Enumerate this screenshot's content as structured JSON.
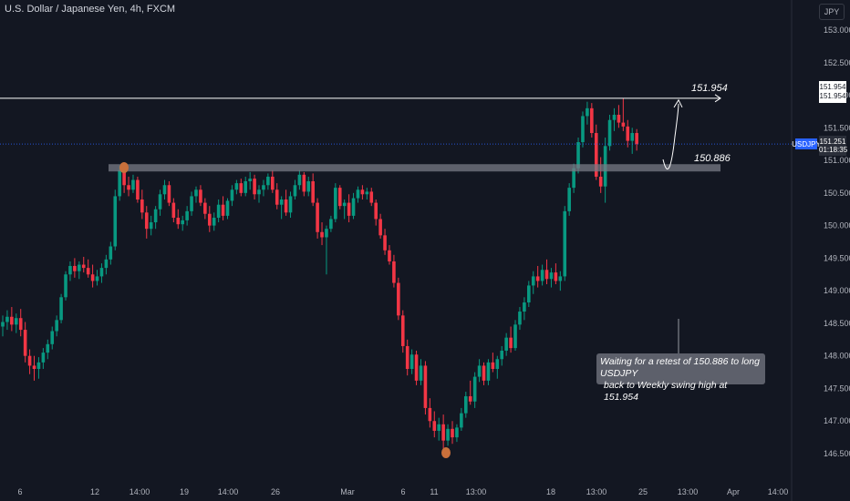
{
  "header": {
    "title": "U.S. Dollar / Japanese Yen, 4h, FXCM",
    "currency": "JPY"
  },
  "levels": {
    "target_label": "151.954",
    "retest_label": "150.886",
    "axis_tag_top": "151.954",
    "axis_tag_bottom": "151.954",
    "symbol_tag": "USDJPY",
    "last_price": "151.251",
    "countdown": "01:18:35"
  },
  "note": {
    "line1": "Waiting for a retest of 150.886 to long USDJPY",
    "line2": "back to Weekly swing high at 151.954"
  },
  "colors": {
    "up": "#089981",
    "down": "#f23645",
    "zone": "#787b86",
    "marker": "#c9703b",
    "background": "#131722"
  },
  "chart_data": {
    "type": "candlestick",
    "y_ticks": [
      "153.000",
      "152.500",
      "152.000",
      "151.500",
      "151.000",
      "150.500",
      "150.000",
      "149.500",
      "149.000",
      "148.500",
      "148.000",
      "147.500",
      "147.000",
      "146.500"
    ],
    "x_ticks": [
      "6",
      "12",
      "14:00",
      "19",
      "14:00",
      "26",
      "Mar",
      "6",
      "11",
      "13:00",
      "18",
      "13:00",
      "25",
      "13:00",
      "Apr",
      "14:00"
    ],
    "ylim": [
      146.3,
      153.2
    ],
    "horizontal_levels": [
      151.954,
      150.886
    ],
    "candles": [
      {
        "o": 148.45,
        "h": 148.62,
        "l": 148.3,
        "c": 148.52
      },
      {
        "o": 148.52,
        "h": 148.7,
        "l": 148.4,
        "c": 148.6
      },
      {
        "o": 148.6,
        "h": 148.75,
        "l": 148.38,
        "c": 148.48
      },
      {
        "o": 148.48,
        "h": 148.65,
        "l": 148.35,
        "c": 148.58
      },
      {
        "o": 148.58,
        "h": 148.72,
        "l": 148.3,
        "c": 148.4
      },
      {
        "o": 148.4,
        "h": 148.52,
        "l": 147.9,
        "c": 148.0
      },
      {
        "o": 148.0,
        "h": 148.1,
        "l": 147.72,
        "c": 147.85
      },
      {
        "o": 147.85,
        "h": 148.0,
        "l": 147.62,
        "c": 147.8
      },
      {
        "o": 147.8,
        "h": 147.98,
        "l": 147.65,
        "c": 147.9
      },
      {
        "o": 147.9,
        "h": 148.12,
        "l": 147.8,
        "c": 148.05
      },
      {
        "o": 148.05,
        "h": 148.25,
        "l": 147.95,
        "c": 148.18
      },
      {
        "o": 148.18,
        "h": 148.45,
        "l": 148.1,
        "c": 148.38
      },
      {
        "o": 148.38,
        "h": 148.62,
        "l": 148.3,
        "c": 148.55
      },
      {
        "o": 148.55,
        "h": 148.95,
        "l": 148.5,
        "c": 148.9
      },
      {
        "o": 148.9,
        "h": 149.3,
        "l": 148.85,
        "c": 149.25
      },
      {
        "o": 149.25,
        "h": 149.45,
        "l": 149.15,
        "c": 149.38
      },
      {
        "o": 149.38,
        "h": 149.5,
        "l": 149.2,
        "c": 149.3
      },
      {
        "o": 149.3,
        "h": 149.45,
        "l": 149.18,
        "c": 149.4
      },
      {
        "o": 149.4,
        "h": 149.52,
        "l": 149.28,
        "c": 149.35
      },
      {
        "o": 149.35,
        "h": 149.48,
        "l": 149.2,
        "c": 149.25
      },
      {
        "o": 149.25,
        "h": 149.4,
        "l": 149.05,
        "c": 149.15
      },
      {
        "o": 149.15,
        "h": 149.32,
        "l": 149.08,
        "c": 149.22
      },
      {
        "o": 149.22,
        "h": 149.42,
        "l": 149.12,
        "c": 149.35
      },
      {
        "o": 149.35,
        "h": 149.55,
        "l": 149.25,
        "c": 149.48
      },
      {
        "o": 149.48,
        "h": 149.75,
        "l": 149.4,
        "c": 149.68
      },
      {
        "o": 149.68,
        "h": 150.55,
        "l": 149.62,
        "c": 150.45
      },
      {
        "o": 150.45,
        "h": 150.92,
        "l": 150.38,
        "c": 150.85
      },
      {
        "o": 150.85,
        "h": 150.9,
        "l": 150.5,
        "c": 150.62
      },
      {
        "o": 150.62,
        "h": 150.75,
        "l": 150.45,
        "c": 150.55
      },
      {
        "o": 150.55,
        "h": 150.78,
        "l": 150.5,
        "c": 150.7
      },
      {
        "o": 150.7,
        "h": 150.75,
        "l": 150.35,
        "c": 150.4
      },
      {
        "o": 150.4,
        "h": 150.55,
        "l": 150.1,
        "c": 150.2
      },
      {
        "o": 150.2,
        "h": 150.3,
        "l": 149.8,
        "c": 149.95
      },
      {
        "o": 149.95,
        "h": 150.15,
        "l": 149.85,
        "c": 150.05
      },
      {
        "o": 150.05,
        "h": 150.3,
        "l": 149.95,
        "c": 150.25
      },
      {
        "o": 150.25,
        "h": 150.55,
        "l": 150.15,
        "c": 150.48
      },
      {
        "o": 150.48,
        "h": 150.7,
        "l": 150.4,
        "c": 150.62
      },
      {
        "o": 150.62,
        "h": 150.68,
        "l": 150.3,
        "c": 150.35
      },
      {
        "o": 150.35,
        "h": 150.42,
        "l": 150.05,
        "c": 150.12
      },
      {
        "o": 150.12,
        "h": 150.25,
        "l": 149.95,
        "c": 150.02
      },
      {
        "o": 150.02,
        "h": 150.15,
        "l": 149.92,
        "c": 150.08
      },
      {
        "o": 150.08,
        "h": 150.3,
        "l": 150.0,
        "c": 150.22
      },
      {
        "o": 150.22,
        "h": 150.52,
        "l": 150.15,
        "c": 150.45
      },
      {
        "o": 150.45,
        "h": 150.6,
        "l": 150.35,
        "c": 150.55
      },
      {
        "o": 150.55,
        "h": 150.62,
        "l": 150.3,
        "c": 150.35
      },
      {
        "o": 150.35,
        "h": 150.42,
        "l": 150.1,
        "c": 150.18
      },
      {
        "o": 150.18,
        "h": 150.3,
        "l": 149.9,
        "c": 150.0
      },
      {
        "o": 150.0,
        "h": 150.2,
        "l": 149.92,
        "c": 150.12
      },
      {
        "o": 150.12,
        "h": 150.4,
        "l": 150.05,
        "c": 150.32
      },
      {
        "o": 150.32,
        "h": 150.45,
        "l": 150.08,
        "c": 150.15
      },
      {
        "o": 150.15,
        "h": 150.42,
        "l": 150.1,
        "c": 150.38
      },
      {
        "o": 150.38,
        "h": 150.62,
        "l": 150.3,
        "c": 150.55
      },
      {
        "o": 150.55,
        "h": 150.7,
        "l": 150.48,
        "c": 150.65
      },
      {
        "o": 150.65,
        "h": 150.72,
        "l": 150.45,
        "c": 150.5
      },
      {
        "o": 150.5,
        "h": 150.75,
        "l": 150.45,
        "c": 150.68
      },
      {
        "o": 150.68,
        "h": 150.82,
        "l": 150.55,
        "c": 150.72
      },
      {
        "o": 150.72,
        "h": 150.78,
        "l": 150.4,
        "c": 150.48
      },
      {
        "o": 150.48,
        "h": 150.62,
        "l": 150.35,
        "c": 150.55
      },
      {
        "o": 150.55,
        "h": 150.7,
        "l": 150.45,
        "c": 150.62
      },
      {
        "o": 150.62,
        "h": 150.8,
        "l": 150.55,
        "c": 150.75
      },
      {
        "o": 150.75,
        "h": 150.85,
        "l": 150.5,
        "c": 150.55
      },
      {
        "o": 150.55,
        "h": 150.65,
        "l": 150.25,
        "c": 150.32
      },
      {
        "o": 150.32,
        "h": 150.45,
        "l": 150.1,
        "c": 150.4
      },
      {
        "o": 150.4,
        "h": 150.55,
        "l": 150.15,
        "c": 150.2
      },
      {
        "o": 150.2,
        "h": 150.52,
        "l": 150.12,
        "c": 150.45
      },
      {
        "o": 150.45,
        "h": 150.7,
        "l": 150.4,
        "c": 150.62
      },
      {
        "o": 150.62,
        "h": 150.85,
        "l": 150.55,
        "c": 150.78
      },
      {
        "o": 150.78,
        "h": 150.82,
        "l": 150.45,
        "c": 150.52
      },
      {
        "o": 150.52,
        "h": 150.75,
        "l": 150.45,
        "c": 150.68
      },
      {
        "o": 150.68,
        "h": 150.8,
        "l": 150.3,
        "c": 150.35
      },
      {
        "o": 150.35,
        "h": 150.42,
        "l": 149.8,
        "c": 149.9
      },
      {
        "o": 149.9,
        "h": 150.05,
        "l": 149.7,
        "c": 149.82
      },
      {
        "o": 149.82,
        "h": 150.0,
        "l": 149.25,
        "c": 149.95
      },
      {
        "o": 149.95,
        "h": 150.15,
        "l": 149.9,
        "c": 150.1
      },
      {
        "o": 150.1,
        "h": 150.65,
        "l": 150.05,
        "c": 150.58
      },
      {
        "o": 150.58,
        "h": 150.62,
        "l": 150.25,
        "c": 150.3
      },
      {
        "o": 150.3,
        "h": 150.4,
        "l": 150.1,
        "c": 150.35
      },
      {
        "o": 150.35,
        "h": 150.48,
        "l": 150.05,
        "c": 150.15
      },
      {
        "o": 150.15,
        "h": 150.5,
        "l": 150.1,
        "c": 150.42
      },
      {
        "o": 150.42,
        "h": 150.6,
        "l": 150.35,
        "c": 150.55
      },
      {
        "o": 150.55,
        "h": 150.62,
        "l": 150.4,
        "c": 150.48
      },
      {
        "o": 150.48,
        "h": 150.58,
        "l": 150.4,
        "c": 150.52
      },
      {
        "o": 150.52,
        "h": 150.58,
        "l": 150.3,
        "c": 150.35
      },
      {
        "o": 150.35,
        "h": 150.4,
        "l": 150.0,
        "c": 150.1
      },
      {
        "o": 150.1,
        "h": 150.18,
        "l": 149.8,
        "c": 149.85
      },
      {
        "o": 149.85,
        "h": 149.95,
        "l": 149.55,
        "c": 149.62
      },
      {
        "o": 149.62,
        "h": 149.7,
        "l": 149.4,
        "c": 149.45
      },
      {
        "o": 149.45,
        "h": 149.55,
        "l": 149.05,
        "c": 149.12
      },
      {
        "o": 149.12,
        "h": 149.2,
        "l": 148.55,
        "c": 148.62
      },
      {
        "o": 148.62,
        "h": 148.7,
        "l": 148.05,
        "c": 148.15
      },
      {
        "o": 148.15,
        "h": 148.25,
        "l": 147.7,
        "c": 147.8
      },
      {
        "o": 147.8,
        "h": 148.1,
        "l": 147.72,
        "c": 148.02
      },
      {
        "o": 148.02,
        "h": 148.08,
        "l": 147.55,
        "c": 147.62
      },
      {
        "o": 147.62,
        "h": 147.95,
        "l": 147.55,
        "c": 147.85
      },
      {
        "o": 147.85,
        "h": 147.92,
        "l": 147.1,
        "c": 147.2
      },
      {
        "o": 147.2,
        "h": 147.35,
        "l": 146.9,
        "c": 147.0
      },
      {
        "o": 147.0,
        "h": 147.15,
        "l": 146.75,
        "c": 146.85
      },
      {
        "o": 146.85,
        "h": 147.05,
        "l": 146.7,
        "c": 146.95
      },
      {
        "o": 146.95,
        "h": 147.1,
        "l": 146.58,
        "c": 146.7
      },
      {
        "o": 146.7,
        "h": 146.95,
        "l": 146.62,
        "c": 146.88
      },
      {
        "o": 146.88,
        "h": 147.0,
        "l": 146.65,
        "c": 146.75
      },
      {
        "o": 146.75,
        "h": 146.95,
        "l": 146.68,
        "c": 146.9
      },
      {
        "o": 146.9,
        "h": 147.2,
        "l": 146.85,
        "c": 147.12
      },
      {
        "o": 147.12,
        "h": 147.45,
        "l": 147.05,
        "c": 147.38
      },
      {
        "o": 147.38,
        "h": 147.62,
        "l": 147.25,
        "c": 147.3
      },
      {
        "o": 147.3,
        "h": 147.75,
        "l": 147.2,
        "c": 147.68
      },
      {
        "o": 147.68,
        "h": 147.95,
        "l": 147.6,
        "c": 147.85
      },
      {
        "o": 147.85,
        "h": 147.9,
        "l": 147.55,
        "c": 147.62
      },
      {
        "o": 147.62,
        "h": 147.95,
        "l": 147.55,
        "c": 147.9
      },
      {
        "o": 147.9,
        "h": 148.05,
        "l": 147.75,
        "c": 147.8
      },
      {
        "o": 147.8,
        "h": 148.0,
        "l": 147.65,
        "c": 147.95
      },
      {
        "o": 147.95,
        "h": 148.15,
        "l": 147.85,
        "c": 148.08
      },
      {
        "o": 148.08,
        "h": 148.35,
        "l": 148.0,
        "c": 148.28
      },
      {
        "o": 148.28,
        "h": 148.45,
        "l": 148.05,
        "c": 148.12
      },
      {
        "o": 148.12,
        "h": 148.55,
        "l": 148.08,
        "c": 148.48
      },
      {
        "o": 148.48,
        "h": 148.75,
        "l": 148.4,
        "c": 148.68
      },
      {
        "o": 148.68,
        "h": 148.9,
        "l": 148.55,
        "c": 148.82
      },
      {
        "o": 148.82,
        "h": 149.15,
        "l": 148.75,
        "c": 149.08
      },
      {
        "o": 149.08,
        "h": 149.3,
        "l": 148.95,
        "c": 149.22
      },
      {
        "o": 149.22,
        "h": 149.38,
        "l": 149.05,
        "c": 149.15
      },
      {
        "o": 149.15,
        "h": 149.4,
        "l": 149.08,
        "c": 149.32
      },
      {
        "o": 149.32,
        "h": 149.48,
        "l": 149.1,
        "c": 149.18
      },
      {
        "o": 149.18,
        "h": 149.35,
        "l": 149.05,
        "c": 149.28
      },
      {
        "o": 149.28,
        "h": 149.42,
        "l": 149.1,
        "c": 149.15
      },
      {
        "o": 149.15,
        "h": 149.3,
        "l": 149.0,
        "c": 149.22
      },
      {
        "o": 149.22,
        "h": 150.3,
        "l": 149.15,
        "c": 150.22
      },
      {
        "o": 150.22,
        "h": 150.65,
        "l": 150.15,
        "c": 150.58
      },
      {
        "o": 150.58,
        "h": 150.95,
        "l": 150.5,
        "c": 150.88
      },
      {
        "o": 150.88,
        "h": 151.35,
        "l": 150.8,
        "c": 151.28
      },
      {
        "o": 151.28,
        "h": 151.75,
        "l": 151.2,
        "c": 151.68
      },
      {
        "o": 151.68,
        "h": 151.9,
        "l": 151.55,
        "c": 151.8
      },
      {
        "o": 151.8,
        "h": 151.88,
        "l": 151.35,
        "c": 151.42
      },
      {
        "o": 151.42,
        "h": 151.55,
        "l": 150.7,
        "c": 150.75
      },
      {
        "o": 150.75,
        "h": 151.05,
        "l": 150.5,
        "c": 150.6
      },
      {
        "o": 150.6,
        "h": 151.35,
        "l": 150.35,
        "c": 151.22
      },
      {
        "o": 151.22,
        "h": 151.7,
        "l": 151.15,
        "c": 151.62
      },
      {
        "o": 151.62,
        "h": 151.8,
        "l": 151.45,
        "c": 151.7
      },
      {
        "o": 151.7,
        "h": 151.85,
        "l": 151.5,
        "c": 151.58
      },
      {
        "o": 151.58,
        "h": 151.95,
        "l": 151.45,
        "c": 151.52
      },
      {
        "o": 151.52,
        "h": 151.62,
        "l": 151.2,
        "c": 151.3
      },
      {
        "o": 151.3,
        "h": 151.5,
        "l": 151.1,
        "c": 151.42
      },
      {
        "o": 151.42,
        "h": 151.48,
        "l": 151.15,
        "c": 151.25
      }
    ]
  }
}
